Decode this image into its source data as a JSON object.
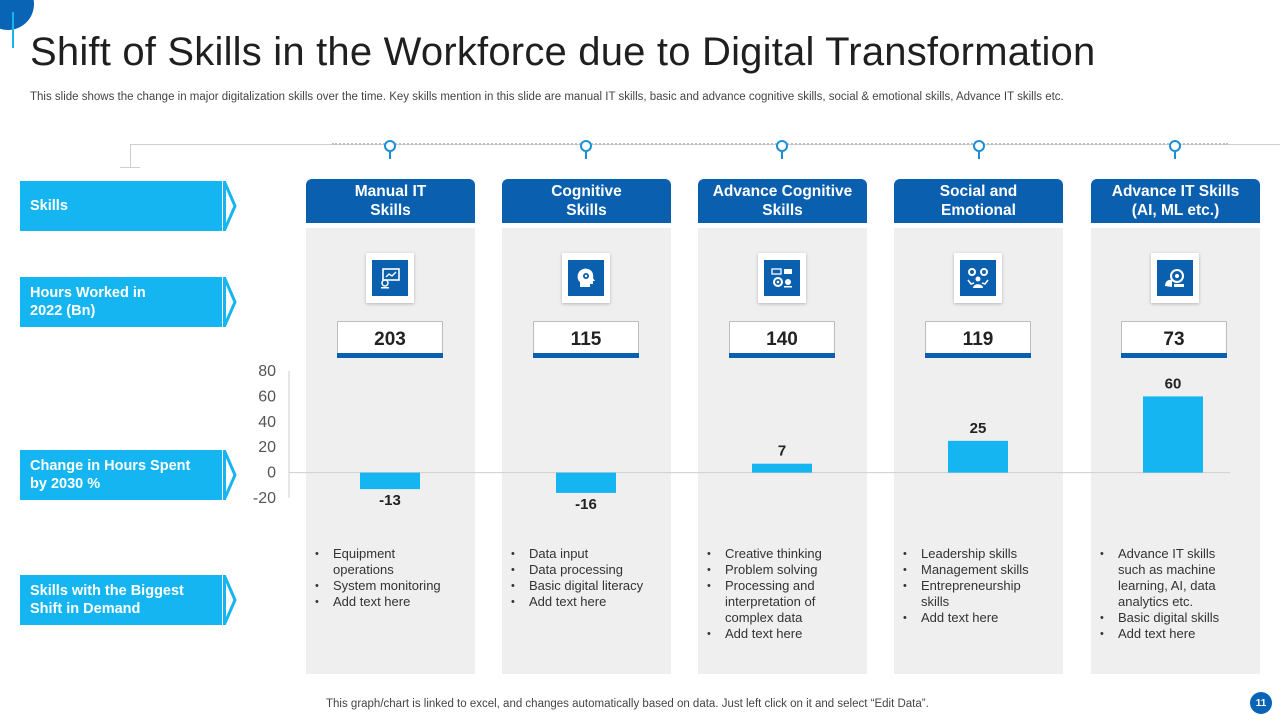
{
  "title": "Shift of Skills in the Workforce due to Digital Transformation",
  "subtitle": "This slide shows the change in major digitalization skills over the time. Key skills mention in this slide are manual IT skills, basic and advance cognitive skills, social & emotional skills, Advance IT skills etc.",
  "row_labels": {
    "skills": "Skills",
    "hours": "Hours Worked in 2022 (Bn)",
    "change": "Change in Hours Spent by 2030 %",
    "shift": "Skills with the Biggest Shift in Demand"
  },
  "columns": [
    {
      "header": "Manual IT Skills",
      "icon": "computer-settings-icon",
      "hours": "203",
      "bullets": [
        "Equipment operations",
        "System monitoring",
        "Add text here"
      ]
    },
    {
      "header": "Cognitive Skills",
      "icon": "head-gear-icon",
      "hours": "115",
      "bullets": [
        "Data input",
        "Data processing",
        "Basic digital literacy",
        "Add text here"
      ]
    },
    {
      "header": "Advance Cognitive Skills",
      "icon": "gears-analytics-icon",
      "hours": "140",
      "bullets": [
        "Creative thinking",
        "Problem solving",
        "Processing and interpretation of complex data",
        "Add text here"
      ]
    },
    {
      "header": "Social and Emotional",
      "icon": "people-gears-icon",
      "hours": "119",
      "bullets": [
        "Leadership skills",
        "Management skills",
        "Entrepreneurship skills",
        "Add text here"
      ]
    },
    {
      "header": "Advance IT Skills (AI, ML etc.)",
      "icon": "ai-brain-icon",
      "hours": "73",
      "bullets": [
        "Advance IT skills such as machine learning, AI, data analytics etc.",
        "Basic digital skills",
        "Add text here"
      ]
    }
  ],
  "chart_data": {
    "type": "bar",
    "categories": [
      "Manual IT Skills",
      "Cognitive Skills",
      "Advance Cognitive Skills",
      "Social and Emotional",
      "Advance IT Skills (AI, ML etc.)"
    ],
    "values": [
      -13,
      -16,
      7,
      25,
      60
    ],
    "data_labels": [
      "-13",
      "-16",
      "7",
      "25",
      "60"
    ],
    "yticks": [
      "80",
      "60",
      "40",
      "20",
      "0",
      "-20"
    ],
    "ylim": [
      -20,
      80
    ],
    "bar_color": "#14b5f0",
    "grid": false
  },
  "footer": "This graph/chart is linked to excel, and changes automatically based on data. Just left click on it and select “Edit Data”.",
  "page_number": "11",
  "colors": {
    "dark_blue": "#0a5fae",
    "light_blue": "#14b5f0",
    "panel": "#efefef"
  }
}
